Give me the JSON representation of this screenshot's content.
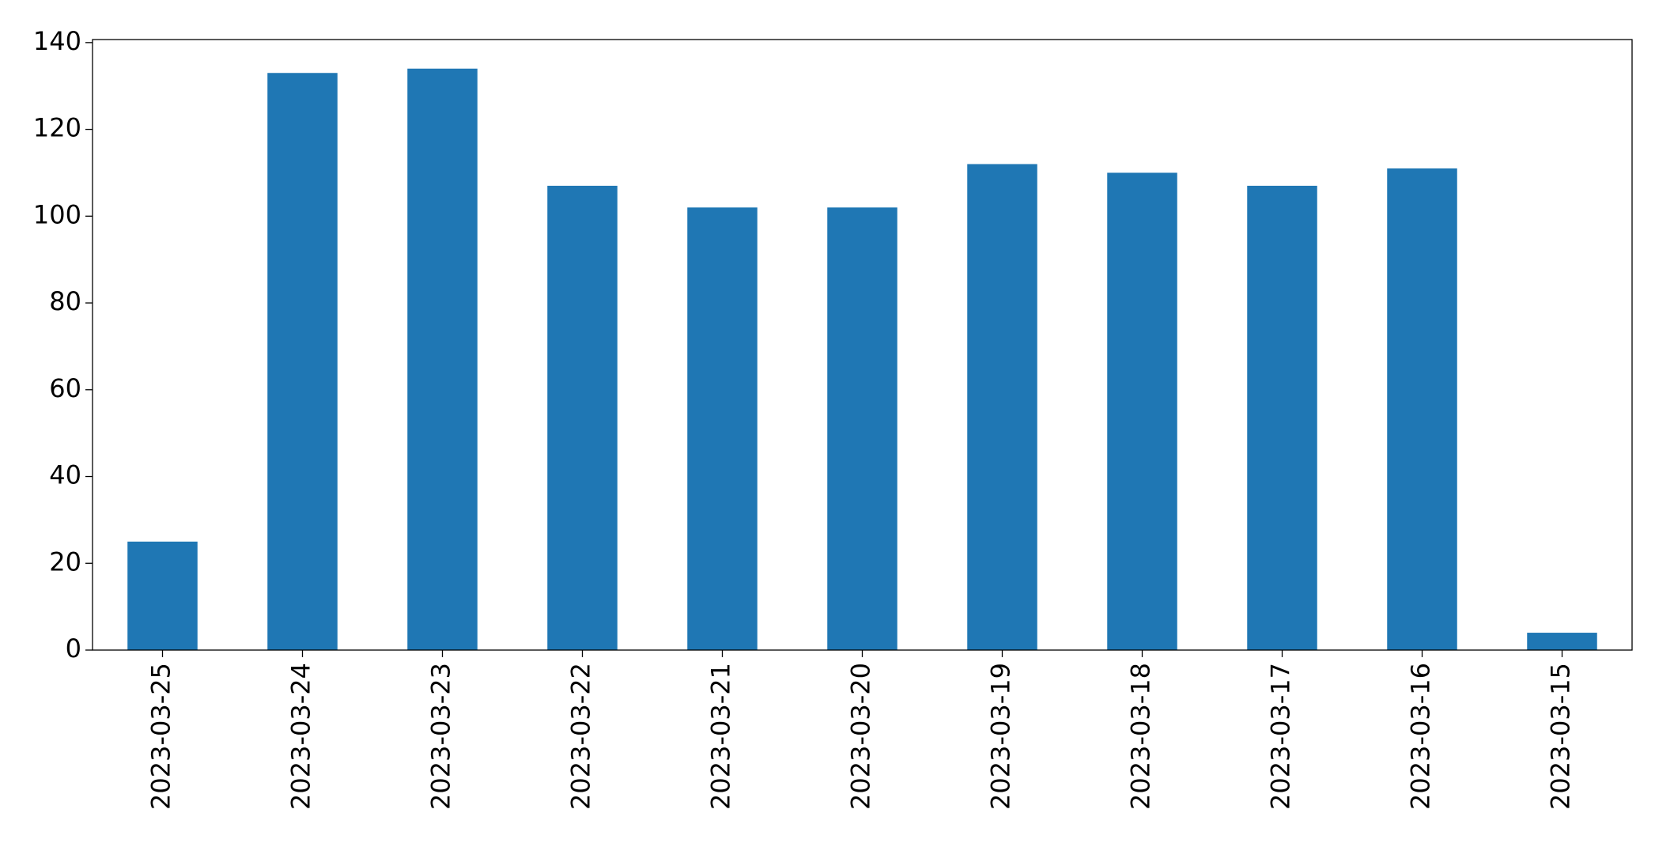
{
  "chart_data": {
    "type": "bar",
    "categories": [
      "2023-03-25",
      "2023-03-24",
      "2023-03-23",
      "2023-03-22",
      "2023-03-21",
      "2023-03-20",
      "2023-03-19",
      "2023-03-18",
      "2023-03-17",
      "2023-03-16",
      "2023-03-15"
    ],
    "values": [
      25,
      133,
      134,
      107,
      102,
      102,
      112,
      110,
      107,
      111,
      4
    ],
    "color": "#1f77b4",
    "ylim": [
      0,
      140.7
    ],
    "yticks": [
      0,
      20,
      40,
      60,
      80,
      100,
      120,
      140
    ],
    "grid": false
  }
}
